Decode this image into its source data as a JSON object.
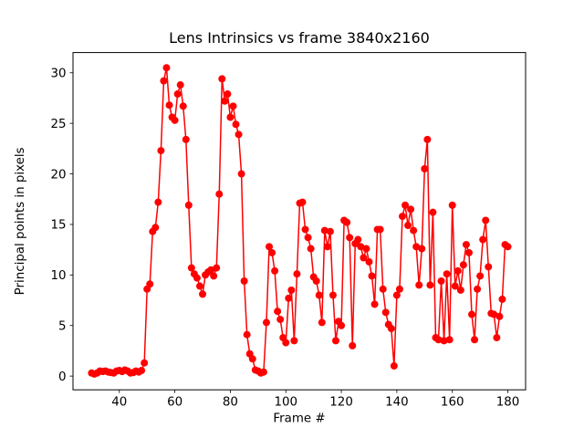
{
  "window": {
    "background_color": "#ffffff"
  },
  "chart_data": {
    "type": "line",
    "title": "Lens Intrinsics vs frame 3840x2160",
    "xlabel": "Frame #",
    "ylabel": "Principal points in pixels",
    "legend": null,
    "grid": false,
    "line_color": "#ff0000",
    "marker": "o",
    "marker_color": "#ff0000",
    "marker_radius": 4,
    "line_width": 1.5,
    "spine_color": "#000000",
    "xlim": [
      23.3,
      186.4
    ],
    "ylim": [
      -1.36,
      32.0
    ],
    "xticks": [
      40,
      60,
      80,
      100,
      120,
      140,
      160,
      180
    ],
    "yticks": [
      0,
      5,
      10,
      15,
      20,
      25,
      30
    ],
    "x": [
      30,
      31,
      32,
      33,
      34,
      35,
      36,
      37,
      38,
      39,
      40,
      41,
      42,
      43,
      44,
      45,
      46,
      47,
      48,
      49,
      50,
      51,
      52,
      53,
      54,
      55,
      56,
      57,
      58,
      59,
      60,
      61,
      62,
      63,
      64,
      65,
      66,
      67,
      68,
      69,
      70,
      71,
      72,
      73,
      74,
      75,
      76,
      77,
      78,
      79,
      80,
      81,
      82,
      83,
      84,
      85,
      86,
      87,
      88,
      89,
      90,
      91,
      92,
      93,
      94,
      95,
      96,
      97,
      98,
      99,
      100,
      101,
      102,
      103,
      104,
      105,
      106,
      107,
      108,
      109,
      110,
      111,
      112,
      113,
      114,
      115,
      116,
      117,
      118,
      119,
      120,
      121,
      122,
      123,
      124,
      125,
      126,
      127,
      128,
      129,
      130,
      131,
      132,
      133,
      134,
      135,
      136,
      137,
      138,
      139,
      140,
      141,
      142,
      143,
      144,
      145,
      146,
      147,
      148,
      149,
      150,
      151,
      152,
      153,
      154,
      155,
      156,
      157,
      158,
      159,
      160,
      161,
      162,
      163,
      164,
      165,
      166,
      167,
      168,
      169,
      170,
      171,
      172,
      173,
      174,
      175,
      176,
      177,
      178,
      179,
      180
    ],
    "y": [
      0.3,
      0.2,
      0.3,
      0.5,
      0.45,
      0.5,
      0.4,
      0.35,
      0.3,
      0.5,
      0.55,
      0.45,
      0.6,
      0.5,
      0.3,
      0.35,
      0.5,
      0.4,
      0.55,
      1.3,
      8.6,
      9.1,
      14.3,
      14.7,
      17.2,
      22.3,
      29.2,
      30.5,
      26.8,
      25.6,
      25.3,
      27.9,
      28.8,
      26.7,
      23.4,
      16.9,
      10.7,
      10.1,
      9.7,
      8.9,
      8.1,
      10.0,
      10.3,
      10.5,
      9.9,
      10.7,
      18.0,
      29.4,
      27.2,
      27.9,
      25.6,
      26.7,
      24.9,
      23.9,
      20.0,
      9.4,
      4.1,
      2.2,
      1.7,
      0.6,
      0.5,
      0.3,
      0.4,
      5.3,
      12.8,
      12.2,
      10.4,
      6.4,
      5.6,
      3.8,
      3.3,
      7.7,
      8.5,
      3.5,
      10.1,
      17.1,
      17.2,
      14.5,
      13.7,
      12.6,
      9.8,
      9.4,
      8.0,
      5.3,
      14.4,
      12.8,
      14.3,
      8.0,
      3.5,
      5.4,
      5.0,
      15.4,
      15.2,
      13.7,
      3.0,
      13.1,
      13.5,
      12.8,
      11.7,
      12.6,
      11.3,
      9.9,
      7.1,
      14.5,
      14.5,
      8.6,
      6.3,
      5.1,
      4.7,
      1.0,
      8.0,
      8.6,
      15.8,
      16.9,
      14.9,
      16.5,
      14.4,
      12.8,
      9.0,
      12.6,
      20.5,
      23.4,
      9.0,
      16.2,
      3.8,
      3.6,
      9.4,
      3.5,
      10.1,
      3.6,
      16.9,
      8.9,
      10.4,
      8.5,
      11.0,
      13.0,
      12.2,
      6.1,
      3.6,
      8.6,
      9.9,
      13.5,
      15.4,
      10.8,
      6.2,
      6.1,
      3.8,
      5.9,
      7.6,
      13.0,
      12.8
    ]
  }
}
